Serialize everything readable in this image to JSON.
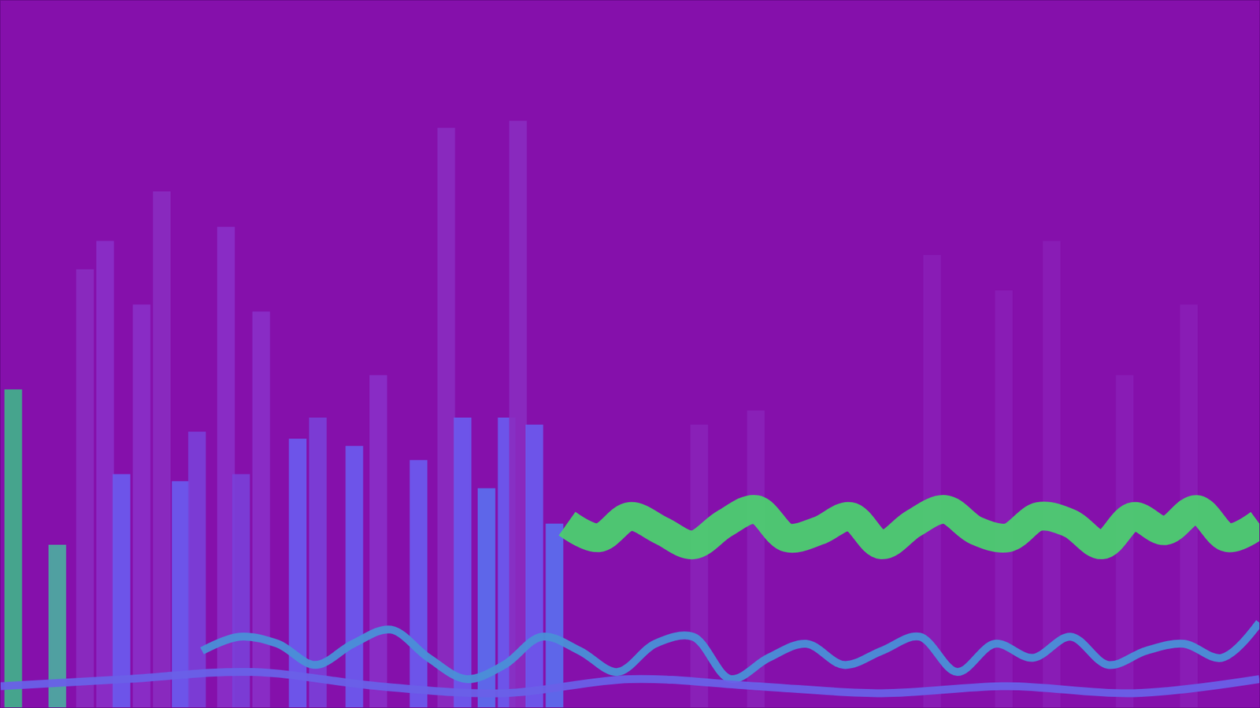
{
  "chart_data": {
    "type": "line",
    "tick_labels": false,
    "grid": false,
    "xlim": [
      0,
      100
    ],
    "ylim": [
      0,
      100
    ],
    "series": [
      {
        "type": "bar",
        "x": [
          1,
          4.5,
          6.7,
          8.3,
          9.6,
          11.2,
          12.8,
          14.3,
          15.6,
          17.9,
          19.1,
          20.7,
          23.6,
          25.2,
          28.1,
          30,
          33.2,
          35.4,
          36.7,
          38.6,
          40.2,
          41.1,
          42.4,
          44,
          55.5,
          60,
          74,
          79.7,
          83.5,
          89.3,
          94.4
        ],
        "values": [
          45,
          23,
          62,
          66,
          33,
          57,
          73,
          32,
          39,
          68,
          33,
          56,
          38,
          41,
          37,
          47,
          35,
          82,
          41,
          31,
          41,
          83,
          40,
          26,
          40,
          42,
          64,
          59,
          66,
          47,
          57
        ],
        "colors": [
          "#3fb58a",
          "#4ab0a0",
          "#8a2cc0",
          "#8a30c8",
          "#6a5cf0",
          "#8a30c8",
          "#8a2cc0",
          "#6a5cf0",
          "#7a40d8",
          "#8a30c8",
          "#7a40d8",
          "#8a30c8",
          "#6a5cf0",
          "#7a40d8",
          "#6a5cf0",
          "#8a30c8",
          "#6a5cf0",
          "#8a2cc0",
          "#6a5cf0",
          "#5a70f0",
          "#6a5cf0",
          "#8a2cc0",
          "#6a5cf0",
          "#5a70f0",
          "#8a22b8",
          "#8a22b8",
          "#8a1eb6",
          "#8a1eb6",
          "#8a1eb6",
          "#8a1eb6",
          "#8a1eb6"
        ]
      },
      {
        "type": "line",
        "color": "#4ccf70",
        "line_style": "solid",
        "x": [
          45,
          47.5,
          50,
          52.5,
          55,
          57.5,
          60,
          62.5,
          65,
          67.5,
          70,
          72.5,
          75,
          77.5,
          80,
          82.5,
          85,
          87.5,
          90,
          92.5,
          95,
          97.5,
          100
        ],
        "values": [
          26,
          24,
          27,
          25,
          23,
          26,
          28,
          24,
          25,
          27,
          23,
          26,
          28,
          25,
          24,
          27,
          26,
          23,
          27,
          25,
          28,
          24,
          26
        ]
      },
      {
        "type": "line",
        "color": "#4a90d8",
        "line_style": "solid",
        "x": [
          16,
          19,
          22,
          25,
          28,
          31,
          34,
          37,
          40,
          43,
          46,
          49,
          52,
          55,
          58,
          61,
          64,
          67,
          70,
          73,
          76,
          79,
          82,
          85,
          88,
          91,
          94,
          97,
          100
        ],
        "values": [
          8,
          10,
          9,
          6,
          9,
          11,
          7,
          4,
          6,
          10,
          8,
          5,
          9,
          10,
          4,
          7,
          9,
          6,
          8,
          10,
          5,
          9,
          7,
          10,
          6,
          8,
          9,
          7,
          12
        ]
      },
      {
        "type": "line",
        "color": "#6a60e8",
        "line_style": "solid",
        "x": [
          0,
          10,
          20,
          30,
          40,
          50,
          60,
          70,
          80,
          90,
          100
        ],
        "values": [
          3,
          4,
          5,
          3,
          2,
          4,
          3,
          2,
          3,
          2,
          4
        ]
      }
    ]
  }
}
